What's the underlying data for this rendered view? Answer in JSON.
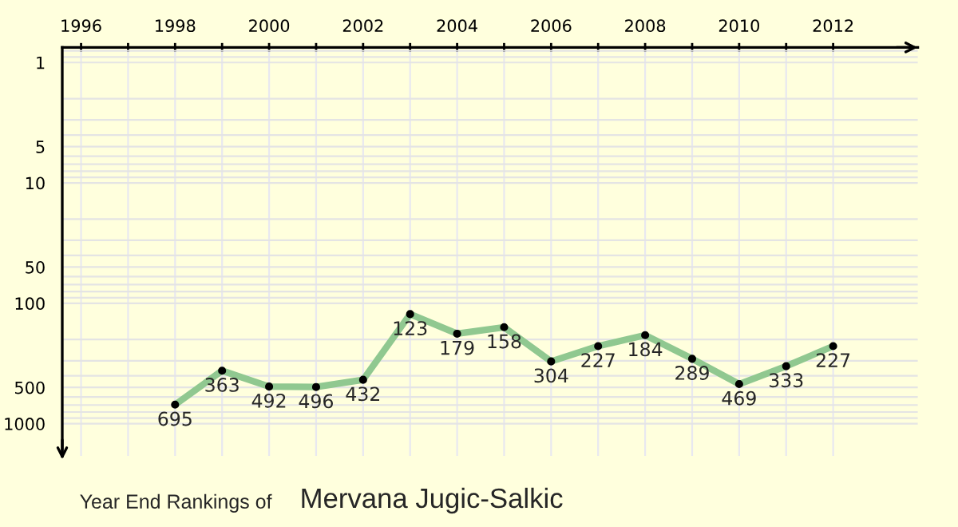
{
  "chart_data": {
    "type": "line",
    "title": "Year End Rankings of",
    "subtitle": "Mervana Jugic-Salkic",
    "x": [
      1998,
      1999,
      2000,
      2001,
      2002,
      2003,
      2004,
      2005,
      2006,
      2007,
      2008,
      2009,
      2010,
      2011,
      2012
    ],
    "series": [
      {
        "color": "#90c890",
        "values": [
          695,
          363,
          492,
          496,
          432,
          123,
          179,
          158,
          304,
          227,
          184,
          289,
          469,
          333,
          227
        ]
      }
    ],
    "data_labels": true,
    "marker": "circle",
    "line_style": "solid",
    "log": true,
    "grid": true,
    "xlim": [
      1995.6,
      2013.8
    ],
    "ylim": [
      1850,
      0.75
    ],
    "xticks": [
      1996,
      {
        "value": 1997,
        "label": null
      },
      1998,
      {
        "value": 1999,
        "label": null
      },
      2000,
      {
        "value": 2001,
        "label": null
      },
      2002,
      {
        "value": 2003,
        "label": null
      },
      2004,
      {
        "value": 2005,
        "label": null
      },
      2006,
      {
        "value": 2007,
        "label": null
      },
      2008,
      {
        "value": 2009,
        "label": null
      },
      2010,
      {
        "value": 2011,
        "label": null
      },
      2012
    ],
    "yticks": [
      1,
      5,
      10,
      50,
      100,
      500,
      1000
    ]
  }
}
